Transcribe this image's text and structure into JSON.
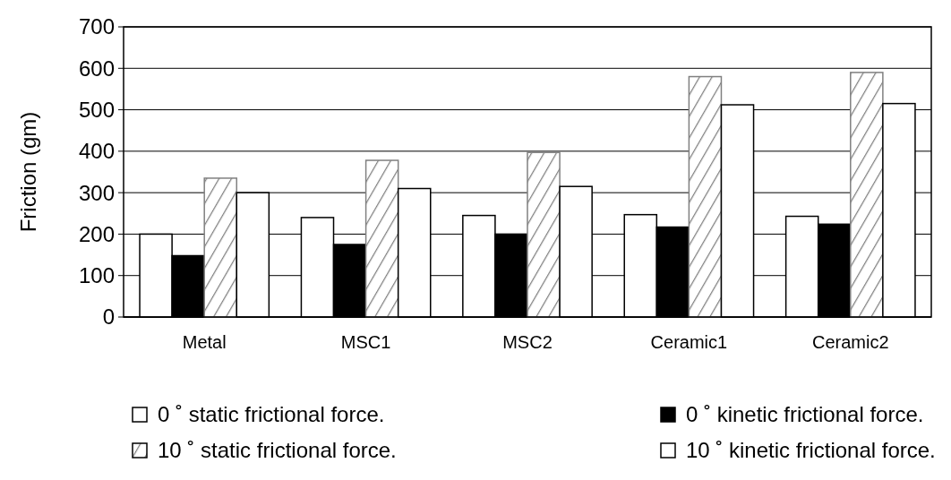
{
  "chart_data": {
    "type": "bar",
    "ylabel": "Friction (gm)",
    "categories": [
      "Metal",
      "MSC1",
      "MSC2",
      "Ceramic1",
      "Ceramic2"
    ],
    "series": [
      {
        "name": "0 ˚ static frictional force.",
        "color": "#ffffff",
        "values": [
          200,
          240,
          245,
          247,
          243
        ]
      },
      {
        "name": "0 ˚ kinetic frictional force.",
        "color": "#000000",
        "values": [
          148,
          175,
          200,
          217,
          224
        ]
      },
      {
        "name": "10 ˚ static frictional force.",
        "color": "#808080",
        "values": [
          335,
          378,
          397,
          580,
          590
        ]
      },
      {
        "name": "10 ˚ kinetic frictional force.",
        "color": "#ffffff",
        "values": [
          300,
          310,
          315,
          512,
          515
        ]
      }
    ],
    "ylim": [
      0,
      700
    ],
    "yticks": [
      0,
      100,
      200,
      300,
      400,
      500,
      600,
      700
    ],
    "grid": "y",
    "legend": "bottom"
  }
}
